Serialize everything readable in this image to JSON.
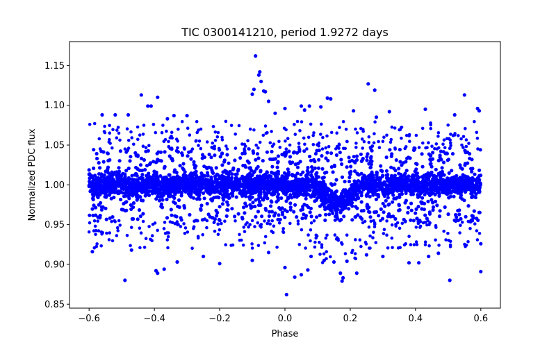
{
  "chart_data": {
    "type": "scatter",
    "title": "TIC 0300141210, period 1.9272 days",
    "xlabel": "Phase",
    "ylabel": "Normalized PDC flux",
    "xlim": [
      -0.66,
      0.66
    ],
    "ylim": [
      0.845,
      1.18
    ],
    "xticks": [
      -0.6,
      -0.4,
      -0.2,
      0.0,
      0.2,
      0.4,
      0.6
    ],
    "xtick_labels": [
      "−0.6",
      "−0.4",
      "−0.2",
      "0.0",
      "0.2",
      "0.4",
      "0.6"
    ],
    "yticks": [
      0.85,
      0.9,
      0.95,
      1.0,
      1.05,
      1.1,
      1.15
    ],
    "ytick_labels": [
      "0.85",
      "0.90",
      "0.95",
      "1.00",
      "1.05",
      "1.10",
      "1.15"
    ],
    "grid": false,
    "marker_color": "#0000ff",
    "series": [
      {
        "name": "PDC flux",
        "band": {
          "phase_range": [
            -0.6,
            0.6
          ],
          "center": 1.0,
          "dense_low": 0.955,
          "dense_high": 1.045,
          "transit": {
            "center_phase": 0.16,
            "half_width": 0.07,
            "depth": 0.03
          }
        },
        "outliers": [
          [
            -0.09,
            1.162
          ],
          [
            -0.077,
            1.142
          ],
          [
            -0.08,
            1.138
          ],
          [
            -0.073,
            1.13
          ],
          [
            -0.06,
            1.117
          ],
          [
            -0.095,
            1.12
          ],
          [
            -0.1,
            1.114
          ],
          [
            -0.065,
            1.118
          ],
          [
            -0.05,
            1.105
          ],
          [
            -0.03,
            1.09
          ],
          [
            0.255,
            1.127
          ],
          [
            0.275,
            1.119
          ],
          [
            0.13,
            1.109
          ],
          [
            0.14,
            1.108
          ],
          [
            0.11,
            1.098
          ],
          [
            0.05,
            1.099
          ],
          [
            0.06,
            1.094
          ],
          [
            -0.44,
            1.113
          ],
          [
            -0.39,
            1.11
          ],
          [
            -0.41,
            1.099
          ],
          [
            0.55,
            1.113
          ],
          [
            0.59,
            1.096
          ],
          [
            0.595,
            1.093
          ],
          [
            0.43,
            1.095
          ],
          [
            -0.52,
            1.088
          ],
          [
            -0.48,
            1.088
          ],
          [
            -0.34,
            1.087
          ],
          [
            -0.3,
            1.087
          ],
          [
            0.21,
            1.093
          ],
          [
            0.32,
            1.092
          ],
          [
            0.075,
            1.099
          ],
          [
            -0.0,
            1.096
          ],
          [
            -0.42,
            1.099
          ],
          [
            -0.36,
            1.083
          ],
          [
            0.28,
            1.085
          ],
          [
            -0.56,
            1.088
          ],
          [
            0.52,
            1.088
          ],
          [
            0.005,
            0.862
          ],
          [
            0.03,
            0.884
          ],
          [
            0.175,
            0.879
          ],
          [
            0.178,
            0.883
          ],
          [
            0.17,
            0.889
          ],
          [
            -0.49,
            0.88
          ],
          [
            0.505,
            0.88
          ],
          [
            -0.39,
            0.889
          ],
          [
            -0.395,
            0.892
          ],
          [
            0.6,
            0.891
          ],
          [
            0.22,
            0.889
          ],
          [
            -0.37,
            0.894
          ],
          [
            0.0,
            0.896
          ],
          [
            0.05,
            0.887
          ],
          [
            0.07,
            0.893
          ],
          [
            -0.2,
            0.901
          ],
          [
            -0.33,
            0.903
          ],
          [
            0.38,
            0.902
          ],
          [
            0.41,
            0.902
          ],
          [
            -0.59,
            0.916
          ],
          [
            0.6,
            0.926
          ],
          [
            0.12,
            0.905
          ],
          [
            0.15,
            0.903
          ],
          [
            0.19,
            0.904
          ],
          [
            -0.1,
            0.905
          ],
          [
            0.47,
            0.914
          ],
          [
            0.44,
            0.91
          ],
          [
            -0.47,
            0.918
          ],
          [
            -0.25,
            0.91
          ],
          [
            0.3,
            0.91
          ],
          [
            0.25,
            0.912
          ],
          [
            0.08,
            0.91
          ],
          [
            -0.05,
            0.915
          ]
        ]
      }
    ]
  }
}
